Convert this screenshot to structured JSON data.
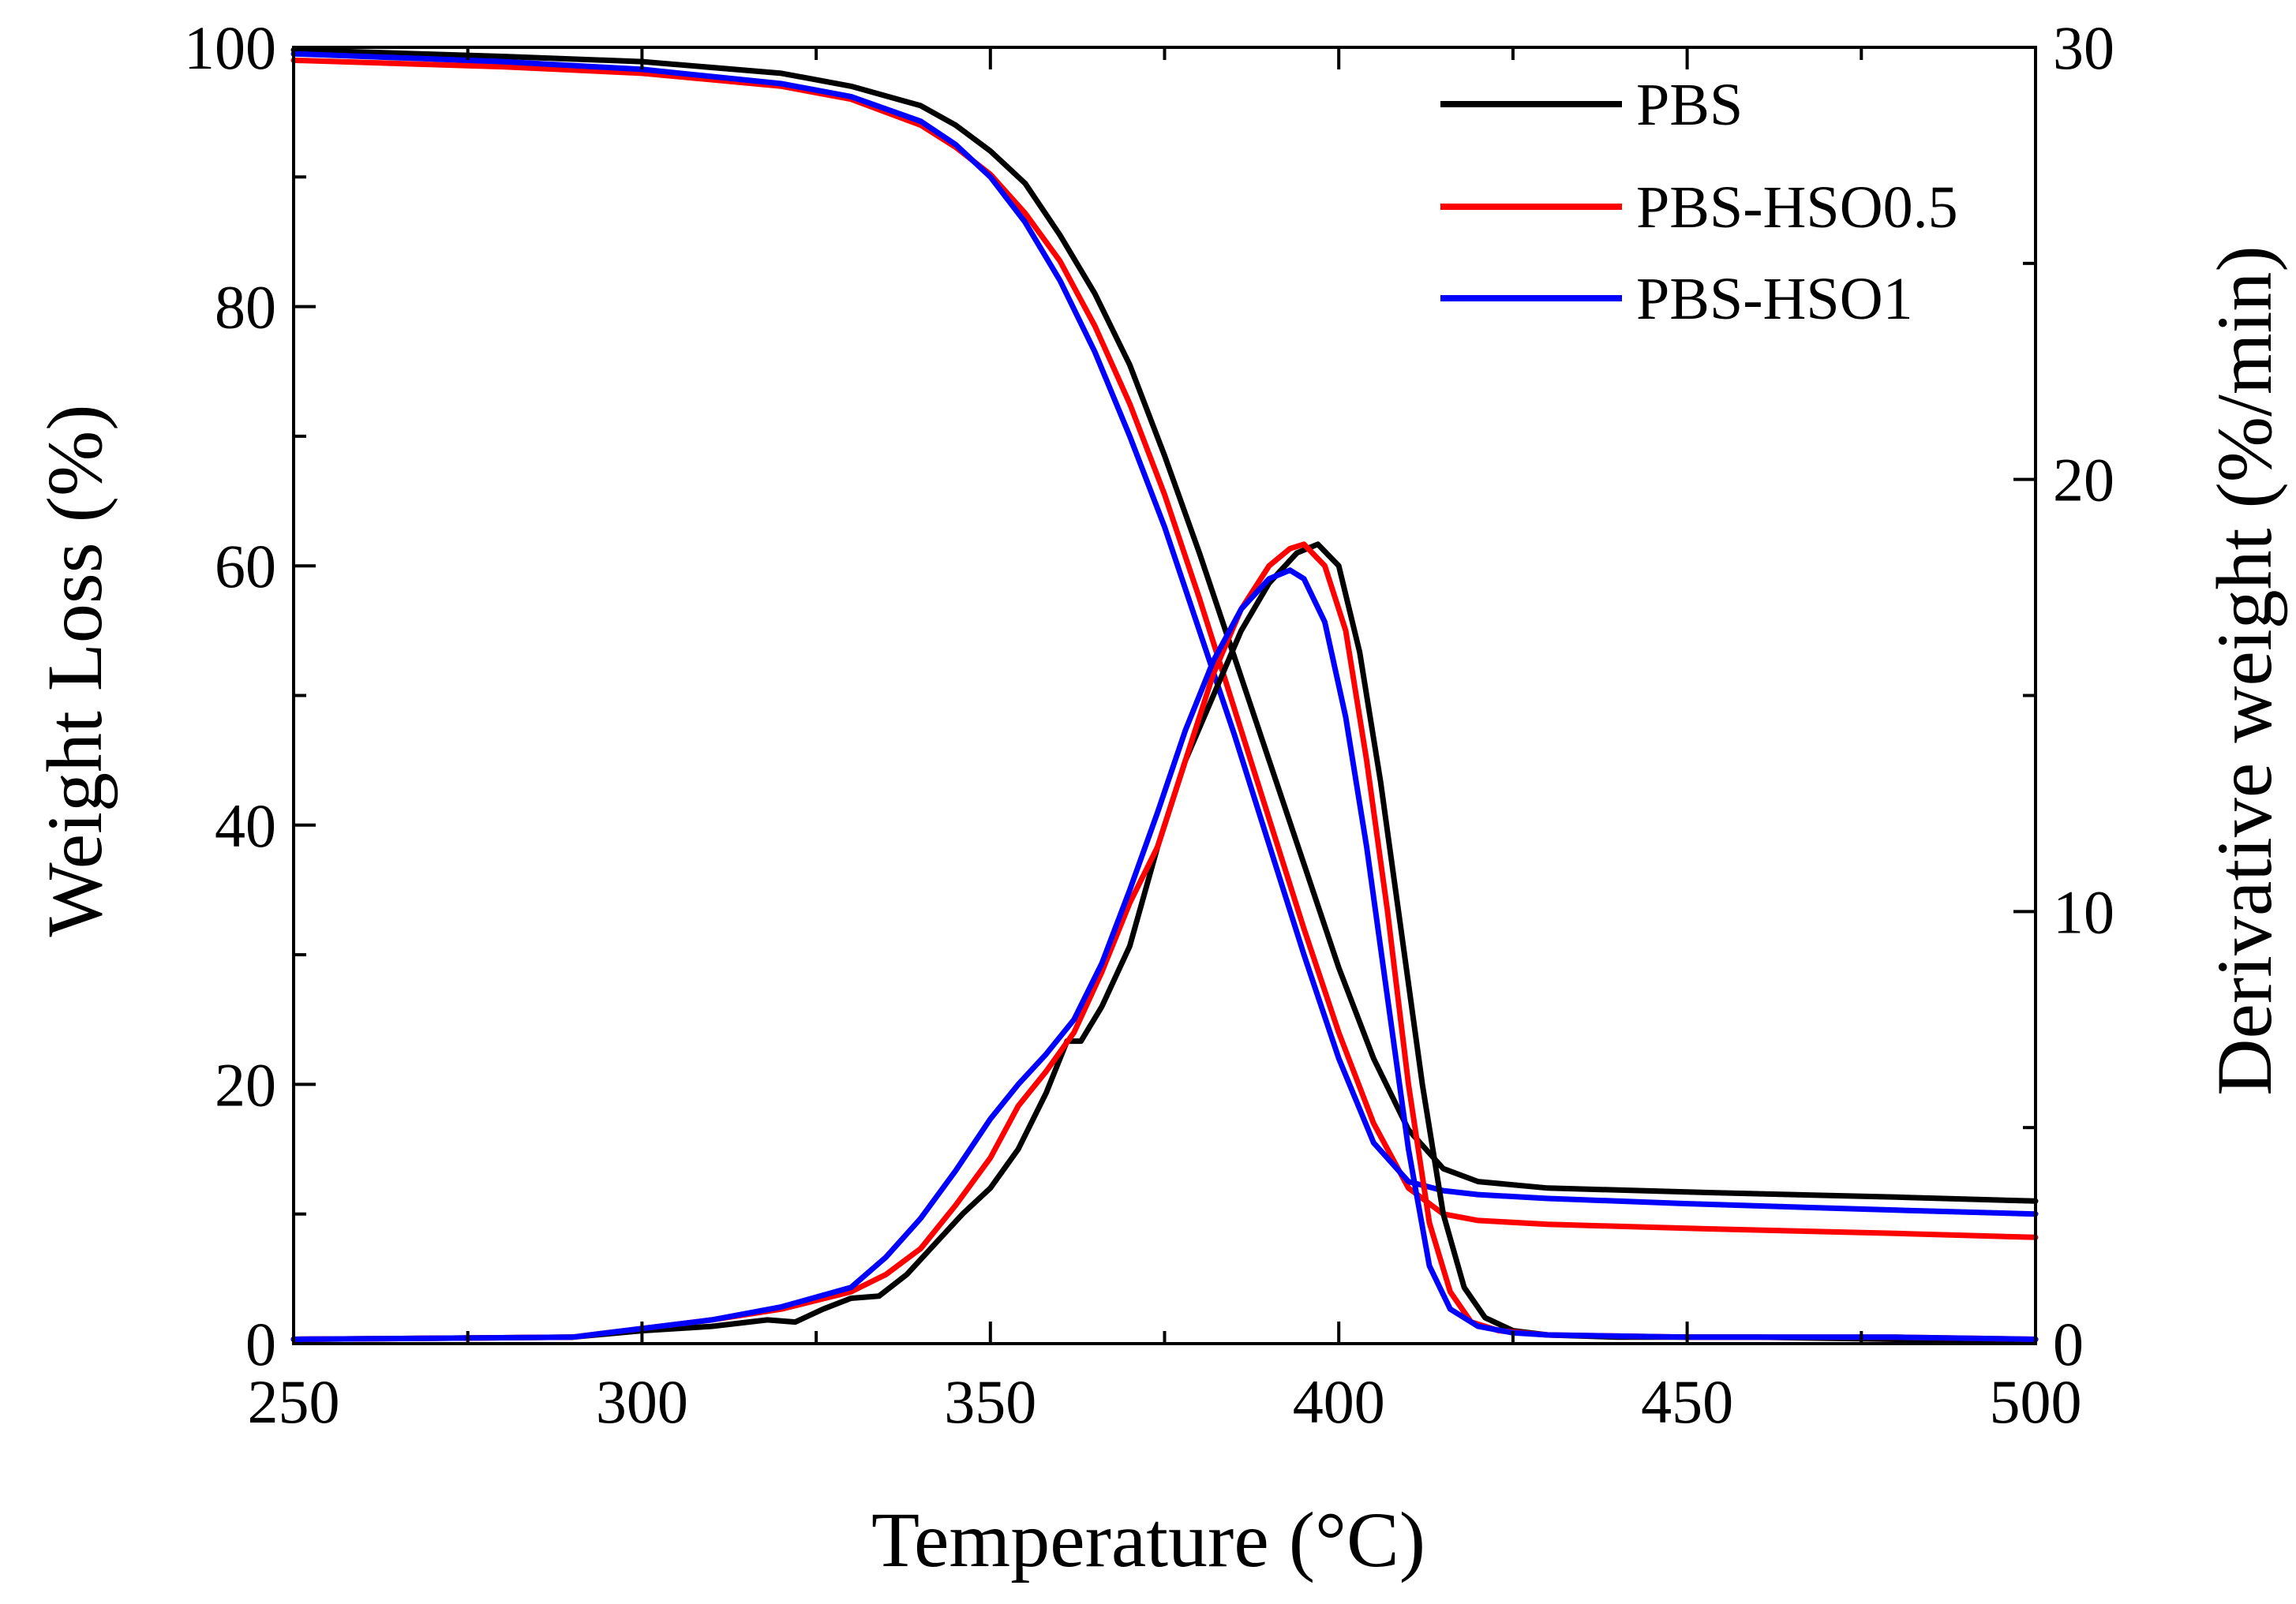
{
  "chart_data": {
    "type": "line",
    "title": "",
    "xlabel": "Temperature (°C)",
    "ylabel_left": "Weight Loss (%)",
    "ylabel_right": "Derivative weight (%/min)",
    "xlim": [
      250,
      500
    ],
    "ylim_left": [
      0,
      100
    ],
    "ylim_right": [
      0,
      30
    ],
    "x_ticks": [
      250,
      300,
      350,
      400,
      450,
      500
    ],
    "y_left_ticks": [
      0,
      20,
      40,
      60,
      80,
      100
    ],
    "y_right_ticks": [
      0,
      10,
      20,
      30
    ],
    "grid": false,
    "legend_position": "top-right",
    "colors": {
      "PBS": "#000000",
      "PBS-HSO0.5": "#ff0000",
      "PBS-HSO1": "#0000ff"
    },
    "series": [
      {
        "name": "PBS",
        "kind": "weight",
        "axis": "left",
        "x": [
          250,
          280,
          300,
          320,
          330,
          340,
          345,
          350,
          355,
          360,
          365,
          370,
          375,
          380,
          385,
          390,
          395,
          400,
          405,
          410,
          415,
          420,
          430,
          450,
          480,
          500
        ],
        "y": [
          99.8,
          99.3,
          98.9,
          98.0,
          97.0,
          95.5,
          94.0,
          92.0,
          89.5,
          85.5,
          81.0,
          75.5,
          68.5,
          61.0,
          53.0,
          45.0,
          37.0,
          29.0,
          22.0,
          16.5,
          13.5,
          12.5,
          12.0,
          11.7,
          11.3,
          11.0
        ]
      },
      {
        "name": "PBS-HSO0.5",
        "kind": "weight",
        "axis": "left",
        "x": [
          250,
          280,
          300,
          320,
          330,
          340,
          345,
          350,
          355,
          360,
          365,
          370,
          375,
          380,
          385,
          390,
          395,
          400,
          405,
          410,
          415,
          420,
          430,
          450,
          480,
          500
        ],
        "y": [
          99.0,
          98.5,
          98.0,
          97.0,
          96.0,
          94.0,
          92.3,
          90.2,
          87.2,
          83.5,
          78.5,
          72.5,
          65.5,
          57.5,
          49.0,
          40.5,
          32.0,
          24.0,
          17.0,
          12.0,
          10.0,
          9.5,
          9.2,
          8.9,
          8.5,
          8.2
        ]
      },
      {
        "name": "PBS-HSO1",
        "kind": "weight",
        "axis": "left",
        "x": [
          250,
          280,
          300,
          320,
          330,
          340,
          345,
          350,
          355,
          360,
          365,
          370,
          375,
          380,
          385,
          390,
          395,
          400,
          405,
          410,
          415,
          420,
          430,
          450,
          480,
          500
        ],
        "y": [
          99.5,
          98.9,
          98.3,
          97.2,
          96.2,
          94.3,
          92.5,
          90.0,
          86.5,
          82.0,
          76.5,
          70.0,
          63.0,
          55.0,
          47.0,
          38.5,
          30.0,
          22.0,
          15.5,
          12.5,
          11.8,
          11.5,
          11.2,
          10.8,
          10.3,
          10.0
        ]
      },
      {
        "name": "PBS",
        "kind": "derivative",
        "axis": "right",
        "x": [
          250,
          290,
          300,
          310,
          318,
          322,
          326,
          330,
          334,
          338,
          342,
          346,
          350,
          354,
          358,
          361,
          363,
          366,
          370,
          374,
          378,
          382,
          386,
          390,
          394,
          397,
          400,
          403,
          406,
          409,
          412,
          415,
          418,
          421,
          425,
          430,
          440,
          460,
          480,
          500
        ],
        "y": [
          0.1,
          0.15,
          0.3,
          0.4,
          0.55,
          0.5,
          0.8,
          1.05,
          1.1,
          1.6,
          2.3,
          3.0,
          3.6,
          4.5,
          5.8,
          7.0,
          7.0,
          7.8,
          9.2,
          11.5,
          13.5,
          15.0,
          16.5,
          17.6,
          18.3,
          18.5,
          18.0,
          16.0,
          13.0,
          9.5,
          6.0,
          3.0,
          1.3,
          0.6,
          0.3,
          0.2,
          0.15,
          0.15,
          0.1,
          0.1
        ]
      },
      {
        "name": "PBS-HSO0.5",
        "kind": "derivative",
        "axis": "right",
        "x": [
          250,
          290,
          300,
          310,
          320,
          330,
          335,
          340,
          345,
          350,
          354,
          358,
          362,
          366,
          370,
          374,
          378,
          382,
          386,
          390,
          393,
          395,
          398,
          401,
          404,
          407,
          410,
          413,
          416,
          419,
          423,
          430,
          450,
          480,
          500
        ],
        "y": [
          0.1,
          0.15,
          0.35,
          0.55,
          0.8,
          1.2,
          1.6,
          2.2,
          3.2,
          4.3,
          5.5,
          6.3,
          7.2,
          8.6,
          10.2,
          11.5,
          13.5,
          15.5,
          17.0,
          18.0,
          18.4,
          18.5,
          18.0,
          16.5,
          13.5,
          10.0,
          6.0,
          2.8,
          1.2,
          0.5,
          0.3,
          0.2,
          0.15,
          0.15,
          0.1
        ]
      },
      {
        "name": "PBS-HSO1",
        "kind": "derivative",
        "axis": "right",
        "x": [
          250,
          290,
          300,
          310,
          320,
          330,
          335,
          340,
          345,
          350,
          354,
          358,
          362,
          366,
          370,
          374,
          378,
          382,
          386,
          390,
          393,
          395,
          398,
          401,
          404,
          407,
          410,
          413,
          416,
          420,
          425,
          430,
          450,
          480,
          500
        ],
        "y": [
          0.1,
          0.15,
          0.35,
          0.55,
          0.85,
          1.3,
          2.0,
          2.9,
          4.0,
          5.2,
          6.0,
          6.7,
          7.5,
          8.8,
          10.5,
          12.3,
          14.2,
          15.8,
          17.0,
          17.7,
          17.9,
          17.7,
          16.7,
          14.5,
          11.5,
          8.0,
          4.5,
          1.8,
          0.8,
          0.4,
          0.25,
          0.2,
          0.15,
          0.15,
          0.1
        ]
      }
    ]
  },
  "legend": {
    "items": [
      {
        "label": "PBS",
        "color": "#000000"
      },
      {
        "label": "PBS-HSO0.5",
        "color": "#ff0000"
      },
      {
        "label": "PBS-HSO1",
        "color": "#0000ff"
      }
    ]
  }
}
